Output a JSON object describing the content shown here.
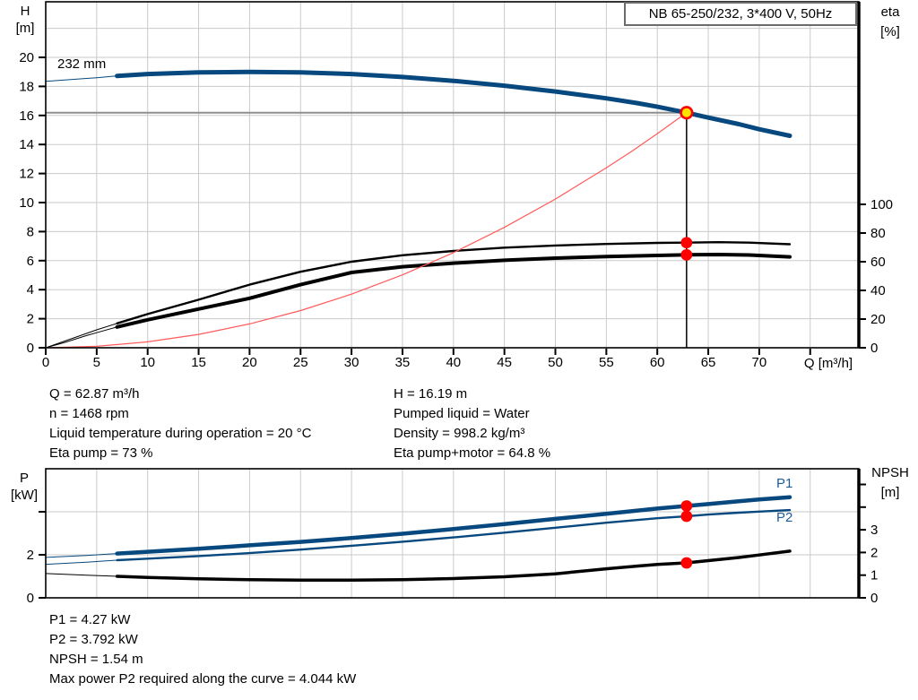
{
  "title_box": {
    "text": "NB 65-250/232, 3*400 V, 50Hz"
  },
  "colors": {
    "curve_blue": "#07487e",
    "label_blue": "#1d5a9b",
    "marker_red": "#ff0000",
    "system_red": "#ff5a5a",
    "operating_yellow": "#ffe400",
    "grid": "#cacaca",
    "guide_gray": "#8f8f8f",
    "axis_black": "#000000"
  },
  "top_chart": {
    "y_left_title": [
      "H",
      "[m]"
    ],
    "y_right_title": [
      "eta",
      "[%]"
    ],
    "x_title": "Q [m³/h]",
    "curve_label": "232 mm"
  },
  "bottom_chart": {
    "y_left_title": [
      "P",
      "[kW]"
    ],
    "y_right_title": [
      "NPSH",
      "[m]"
    ],
    "p1_label": "P1",
    "p2_label": "P2"
  },
  "info": {
    "left": [
      "Q = 62.87 m³/h",
      "n = 1468 rpm",
      "Liquid temperature during operation = 20 °C",
      "Eta pump = 73 %"
    ],
    "right": [
      "H = 16.19 m",
      "Pumped liquid = Water",
      "Density = 998.2 kg/m³",
      "Eta pump+motor = 64.8 %"
    ]
  },
  "footer": [
    "P1 = 4.27 kW",
    "P2 = 3.792 kW",
    "NPSH = 1.54 m",
    "Max power P2 required along the curve = 4.044 kW"
  ],
  "chart_data": [
    {
      "type": "line",
      "title": "NB 65-250/232, 3*400 V, 50Hz",
      "xlabel": "Q [m³/h]",
      "ylabel_left": "H [m]",
      "ylabel_right": "eta [%]",
      "x_range": [
        0,
        79.8
      ],
      "y_left_range": [
        0,
        23.8
      ],
      "y_right_range": [
        0,
        149
      ],
      "grid": true,
      "x_ticks": [
        [
          0,
          "0"
        ],
        [
          5,
          "5"
        ],
        [
          10,
          "10"
        ],
        [
          15,
          "15"
        ],
        [
          20,
          "20"
        ],
        [
          25,
          "25"
        ],
        [
          30,
          "30"
        ],
        [
          35,
          "35"
        ],
        [
          40,
          "40"
        ],
        [
          45,
          "45"
        ],
        [
          50,
          "50"
        ],
        [
          55,
          "55"
        ],
        [
          60,
          "60"
        ],
        [
          65,
          "65"
        ],
        [
          70,
          "70"
        ],
        [
          75,
          ""
        ]
      ],
      "y_left_ticks": [
        [
          0,
          "0"
        ],
        [
          2,
          "2"
        ],
        [
          4,
          "4"
        ],
        [
          6,
          "6"
        ],
        [
          8,
          "8"
        ],
        [
          10,
          "10"
        ],
        [
          12,
          "12"
        ],
        [
          14,
          "14"
        ],
        [
          16,
          "16"
        ],
        [
          18,
          "18"
        ],
        [
          20,
          "20"
        ]
      ],
      "y_right_ticks": [
        [
          0,
          "0"
        ],
        [
          20,
          "20"
        ],
        [
          40,
          "40"
        ],
        [
          60,
          "60"
        ],
        [
          80,
          "80"
        ],
        [
          100,
          "100"
        ]
      ],
      "series": [
        {
          "name": "pump-curve-232mm",
          "axis": "left",
          "label": "232 mm",
          "thin_to": 7,
          "points": [
            [
              0,
              18.35
            ],
            [
              2,
              18.45
            ],
            [
              4,
              18.55
            ],
            [
              5,
              18.6
            ],
            [
              7,
              18.72
            ],
            [
              10,
              18.85
            ],
            [
              15,
              18.96
            ],
            [
              20,
              19.0
            ],
            [
              25,
              18.97
            ],
            [
              30,
              18.85
            ],
            [
              35,
              18.65
            ],
            [
              40,
              18.38
            ],
            [
              45,
              18.05
            ],
            [
              50,
              17.65
            ],
            [
              55,
              17.18
            ],
            [
              58,
              16.85
            ],
            [
              60,
              16.6
            ],
            [
              62.87,
              16.19
            ],
            [
              65,
              15.85
            ],
            [
              68,
              15.4
            ],
            [
              70,
              15.05
            ],
            [
              73,
              14.6
            ]
          ]
        },
        {
          "name": "eta-pump-curve",
          "axis": "right",
          "thin_to": 7,
          "points": [
            [
              0,
              0
            ],
            [
              2,
              5
            ],
            [
              4,
              10
            ],
            [
              5,
              12.5
            ],
            [
              7,
              17
            ],
            [
              10,
              23.5
            ],
            [
              15,
              33.5
            ],
            [
              20,
              44
            ],
            [
              25,
              53
            ],
            [
              30,
              60
            ],
            [
              35,
              64.5
            ],
            [
              40,
              67.5
            ],
            [
              45,
              69.8
            ],
            [
              50,
              71.3
            ],
            [
              55,
              72.4
            ],
            [
              60,
              73.1
            ],
            [
              62.87,
              73.3
            ],
            [
              66,
              73.6
            ],
            [
              69,
              73.3
            ],
            [
              73,
              72.2
            ]
          ]
        },
        {
          "name": "eta-pump-motor-curve",
          "axis": "right",
          "thin_to": 7,
          "points": [
            [
              0,
              0
            ],
            [
              2,
              4
            ],
            [
              4,
              8.5
            ],
            [
              5,
              10.5
            ],
            [
              7,
              14.5
            ],
            [
              10,
              19.5
            ],
            [
              15,
              27
            ],
            [
              20,
              34.5
            ],
            [
              25,
              44
            ],
            [
              30,
              52.5
            ],
            [
              35,
              56.5
            ],
            [
              40,
              59
            ],
            [
              45,
              61
            ],
            [
              50,
              62.5
            ],
            [
              55,
              63.6
            ],
            [
              60,
              64.4
            ],
            [
              62.87,
              64.8
            ],
            [
              66,
              65
            ],
            [
              69,
              64.7
            ],
            [
              73,
              63.4
            ]
          ]
        },
        {
          "name": "system-curve",
          "axis": "left",
          "points": [
            [
              0,
              0
            ],
            [
              5,
              0.1
            ],
            [
              10,
              0.41
            ],
            [
              15,
              0.92
            ],
            [
              20,
              1.64
            ],
            [
              25,
              2.56
            ],
            [
              30,
              3.69
            ],
            [
              35,
              5.02
            ],
            [
              40,
              6.55
            ],
            [
              45,
              8.29
            ],
            [
              50,
              10.24
            ],
            [
              55,
              12.39
            ],
            [
              57.5,
              13.54
            ],
            [
              60,
              14.75
            ],
            [
              62.87,
              16.19
            ]
          ]
        }
      ],
      "operating_point": {
        "q": 62.87,
        "h": 16.19
      },
      "eta_markers": [
        {
          "q": 62.87,
          "v": 73.3
        },
        {
          "q": 62.87,
          "v": 64.8
        }
      ]
    },
    {
      "type": "line",
      "xlabel": "",
      "ylabel_left": "P [kW]",
      "ylabel_right": "NPSH [m]",
      "x_range": [
        0,
        79.8
      ],
      "y_left_range": [
        0,
        6
      ],
      "y_right_range": [
        0,
        5.7
      ],
      "grid": true,
      "x_grid_step": 5,
      "y_left_ticks": [
        [
          0,
          "0"
        ],
        [
          2,
          "2"
        ],
        [
          4,
          ""
        ]
      ],
      "y_right_ticks": [
        [
          0,
          "0"
        ],
        [
          1,
          "1"
        ],
        [
          2,
          "2"
        ],
        [
          3,
          "3"
        ],
        [
          4,
          ""
        ],
        [
          5,
          ""
        ]
      ],
      "series": [
        {
          "name": "p1-curve",
          "axis": "left",
          "label": "P1",
          "thin_to": 7,
          "points": [
            [
              0,
              1.88
            ],
            [
              4,
              1.97
            ],
            [
              7,
              2.06
            ],
            [
              10,
              2.14
            ],
            [
              15,
              2.28
            ],
            [
              20,
              2.44
            ],
            [
              25,
              2.6
            ],
            [
              30,
              2.78
            ],
            [
              35,
              2.98
            ],
            [
              40,
              3.2
            ],
            [
              45,
              3.43
            ],
            [
              50,
              3.67
            ],
            [
              55,
              3.91
            ],
            [
              60,
              4.15
            ],
            [
              62.87,
              4.27
            ],
            [
              65,
              4.36
            ],
            [
              68,
              4.49
            ],
            [
              70,
              4.57
            ],
            [
              73,
              4.68
            ]
          ]
        },
        {
          "name": "p2-curve",
          "axis": "left",
          "label": "P2",
          "thin_to": 7,
          "points": [
            [
              0,
              1.56
            ],
            [
              4,
              1.66
            ],
            [
              7,
              1.75
            ],
            [
              10,
              1.82
            ],
            [
              15,
              1.94
            ],
            [
              20,
              2.08
            ],
            [
              25,
              2.24
            ],
            [
              30,
              2.42
            ],
            [
              35,
              2.61
            ],
            [
              40,
              2.81
            ],
            [
              45,
              3.03
            ],
            [
              50,
              3.26
            ],
            [
              55,
              3.49
            ],
            [
              60,
              3.7
            ],
            [
              62.87,
              3.79
            ],
            [
              65,
              3.87
            ],
            [
              68,
              3.96
            ],
            [
              70,
              4.01
            ],
            [
              73,
              4.08
            ]
          ]
        },
        {
          "name": "npsh-curve",
          "axis": "right",
          "thin_to": 7,
          "points": [
            [
              0,
              1.07
            ],
            [
              4,
              1.0
            ],
            [
              7,
              0.95
            ],
            [
              10,
              0.9
            ],
            [
              15,
              0.84
            ],
            [
              20,
              0.8
            ],
            [
              25,
              0.78
            ],
            [
              30,
              0.78
            ],
            [
              35,
              0.8
            ],
            [
              40,
              0.85
            ],
            [
              45,
              0.93
            ],
            [
              50,
              1.06
            ],
            [
              55,
              1.28
            ],
            [
              58,
              1.4
            ],
            [
              60,
              1.47
            ],
            [
              62.87,
              1.54
            ],
            [
              65,
              1.64
            ],
            [
              68,
              1.78
            ],
            [
              70,
              1.89
            ],
            [
              73,
              2.06
            ]
          ]
        }
      ],
      "markers": [
        {
          "q": 62.87,
          "v": 4.27,
          "axis": "left"
        },
        {
          "q": 62.87,
          "v": 3.792,
          "axis": "left"
        },
        {
          "q": 62.87,
          "v": 1.54,
          "axis": "right"
        }
      ]
    }
  ]
}
